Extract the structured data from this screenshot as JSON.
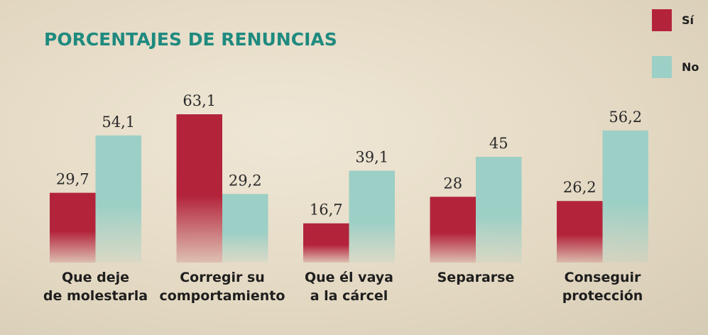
{
  "chart_data": {
    "type": "bar",
    "title": "PORCENTAJES DE RENUNCIAS",
    "categories": [
      "Que deje\nde molestarla",
      "Corregir su\ncomportamiento",
      "Que él vaya\na la cárcel",
      "Separarse",
      "Conseguir\nprotección"
    ],
    "series": [
      {
        "name": "Sí",
        "color": "#b3243b",
        "values": [
          29.7,
          63.1,
          16.7,
          28,
          26.2
        ],
        "value_labels": [
          "29,7",
          "63,1",
          "16,7",
          "28",
          "26,2"
        ]
      },
      {
        "name": "No",
        "color": "#9ccfc5",
        "values": [
          54.1,
          29.2,
          39.1,
          45,
          56.2
        ],
        "value_labels": [
          "54,1",
          "29,2",
          "39,1",
          "45",
          "56,2"
        ]
      }
    ]
  }
}
